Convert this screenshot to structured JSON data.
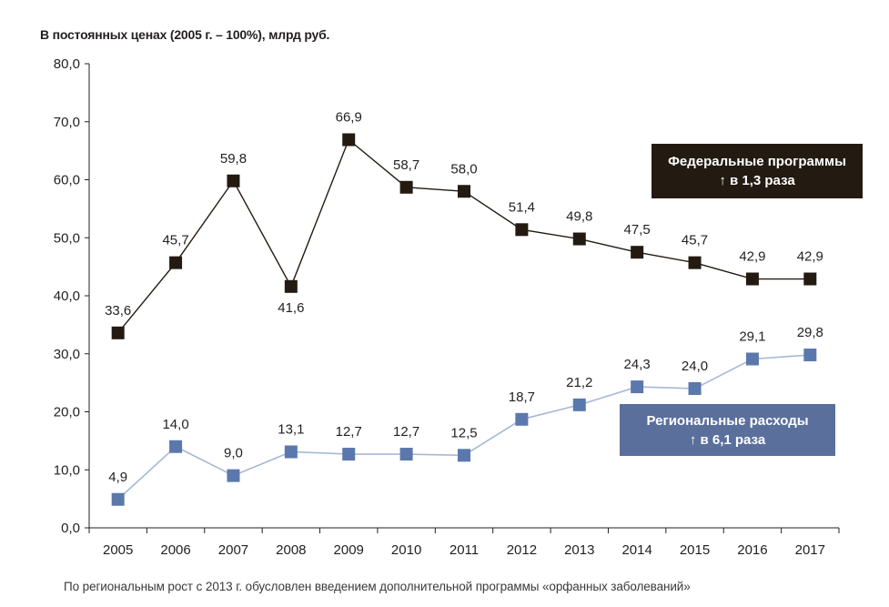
{
  "title": "В постоянных ценах (2005 г. – 100%), млрд руб.",
  "footnote": "По региональным рост с 2013 г. обусловлен введением дополнительной программы «орфанных заболеваний»",
  "colors": {
    "federal": "#231a12",
    "regional": "#5b78ad",
    "regional_line": "#a7b8d6",
    "axis": "#231f20"
  },
  "legend": {
    "federal": {
      "line1": "Федеральные программы",
      "line2": "↑ в 1,3 раза"
    },
    "regional": {
      "line1": "Региональные расходы",
      "line2": "↑ в 6,1 раза"
    }
  },
  "chart_data": {
    "type": "line",
    "categories": [
      "2005",
      "2006",
      "2007",
      "2008",
      "2009",
      "2010",
      "2011",
      "2012",
      "2013",
      "2014",
      "2015",
      "2016",
      "2017"
    ],
    "ylim": [
      0,
      80
    ],
    "yticks": [
      "0,0",
      "10,0",
      "20,0",
      "30,0",
      "40,0",
      "50,0",
      "60,0",
      "70,0",
      "80,0"
    ],
    "grid": false,
    "series": [
      {
        "name": "Федеральные программы",
        "values": [
          33.6,
          45.7,
          59.8,
          41.6,
          66.9,
          58.7,
          58.0,
          51.4,
          49.8,
          47.5,
          45.7,
          42.9,
          42.9
        ],
        "labels": [
          "33,6",
          "45,7",
          "59,8",
          "41,6",
          "66,9",
          "58,7",
          "58,0",
          "51,4",
          "49,8",
          "47,5",
          "45,7",
          "42,9",
          "42,9"
        ]
      },
      {
        "name": "Региональные расходы",
        "values": [
          4.9,
          14.0,
          9.0,
          13.1,
          12.7,
          12.7,
          12.5,
          18.7,
          21.2,
          24.3,
          24.0,
          29.1,
          29.8
        ],
        "labels": [
          "4,9",
          "14,0",
          "9,0",
          "13,1",
          "12,7",
          "12,7",
          "12,5",
          "18,7",
          "21,2",
          "24,3",
          "24,0",
          "29,1",
          "29,8"
        ]
      }
    ]
  }
}
